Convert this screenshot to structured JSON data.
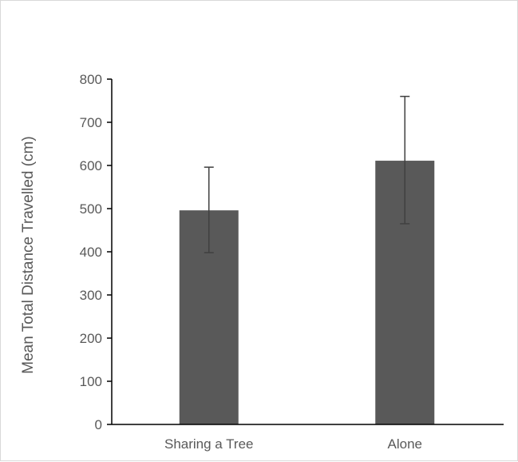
{
  "chart_data": {
    "type": "bar",
    "title": "",
    "xlabel": "",
    "ylabel": "Mean Total Distance Travelled (cm)",
    "categories": [
      "Sharing a Tree",
      "Alone"
    ],
    "values": [
      496,
      611
    ],
    "error_low": [
      398,
      465
    ],
    "error_high": [
      596,
      760
    ],
    "ylim": [
      0,
      800
    ],
    "yticks": [
      0,
      100,
      200,
      300,
      400,
      500,
      600,
      700,
      800
    ],
    "grid": false,
    "legend": "none",
    "colors": {
      "bar": "#595959",
      "axis": "#000000",
      "error_bar": "#404040",
      "text": "#595959"
    }
  }
}
